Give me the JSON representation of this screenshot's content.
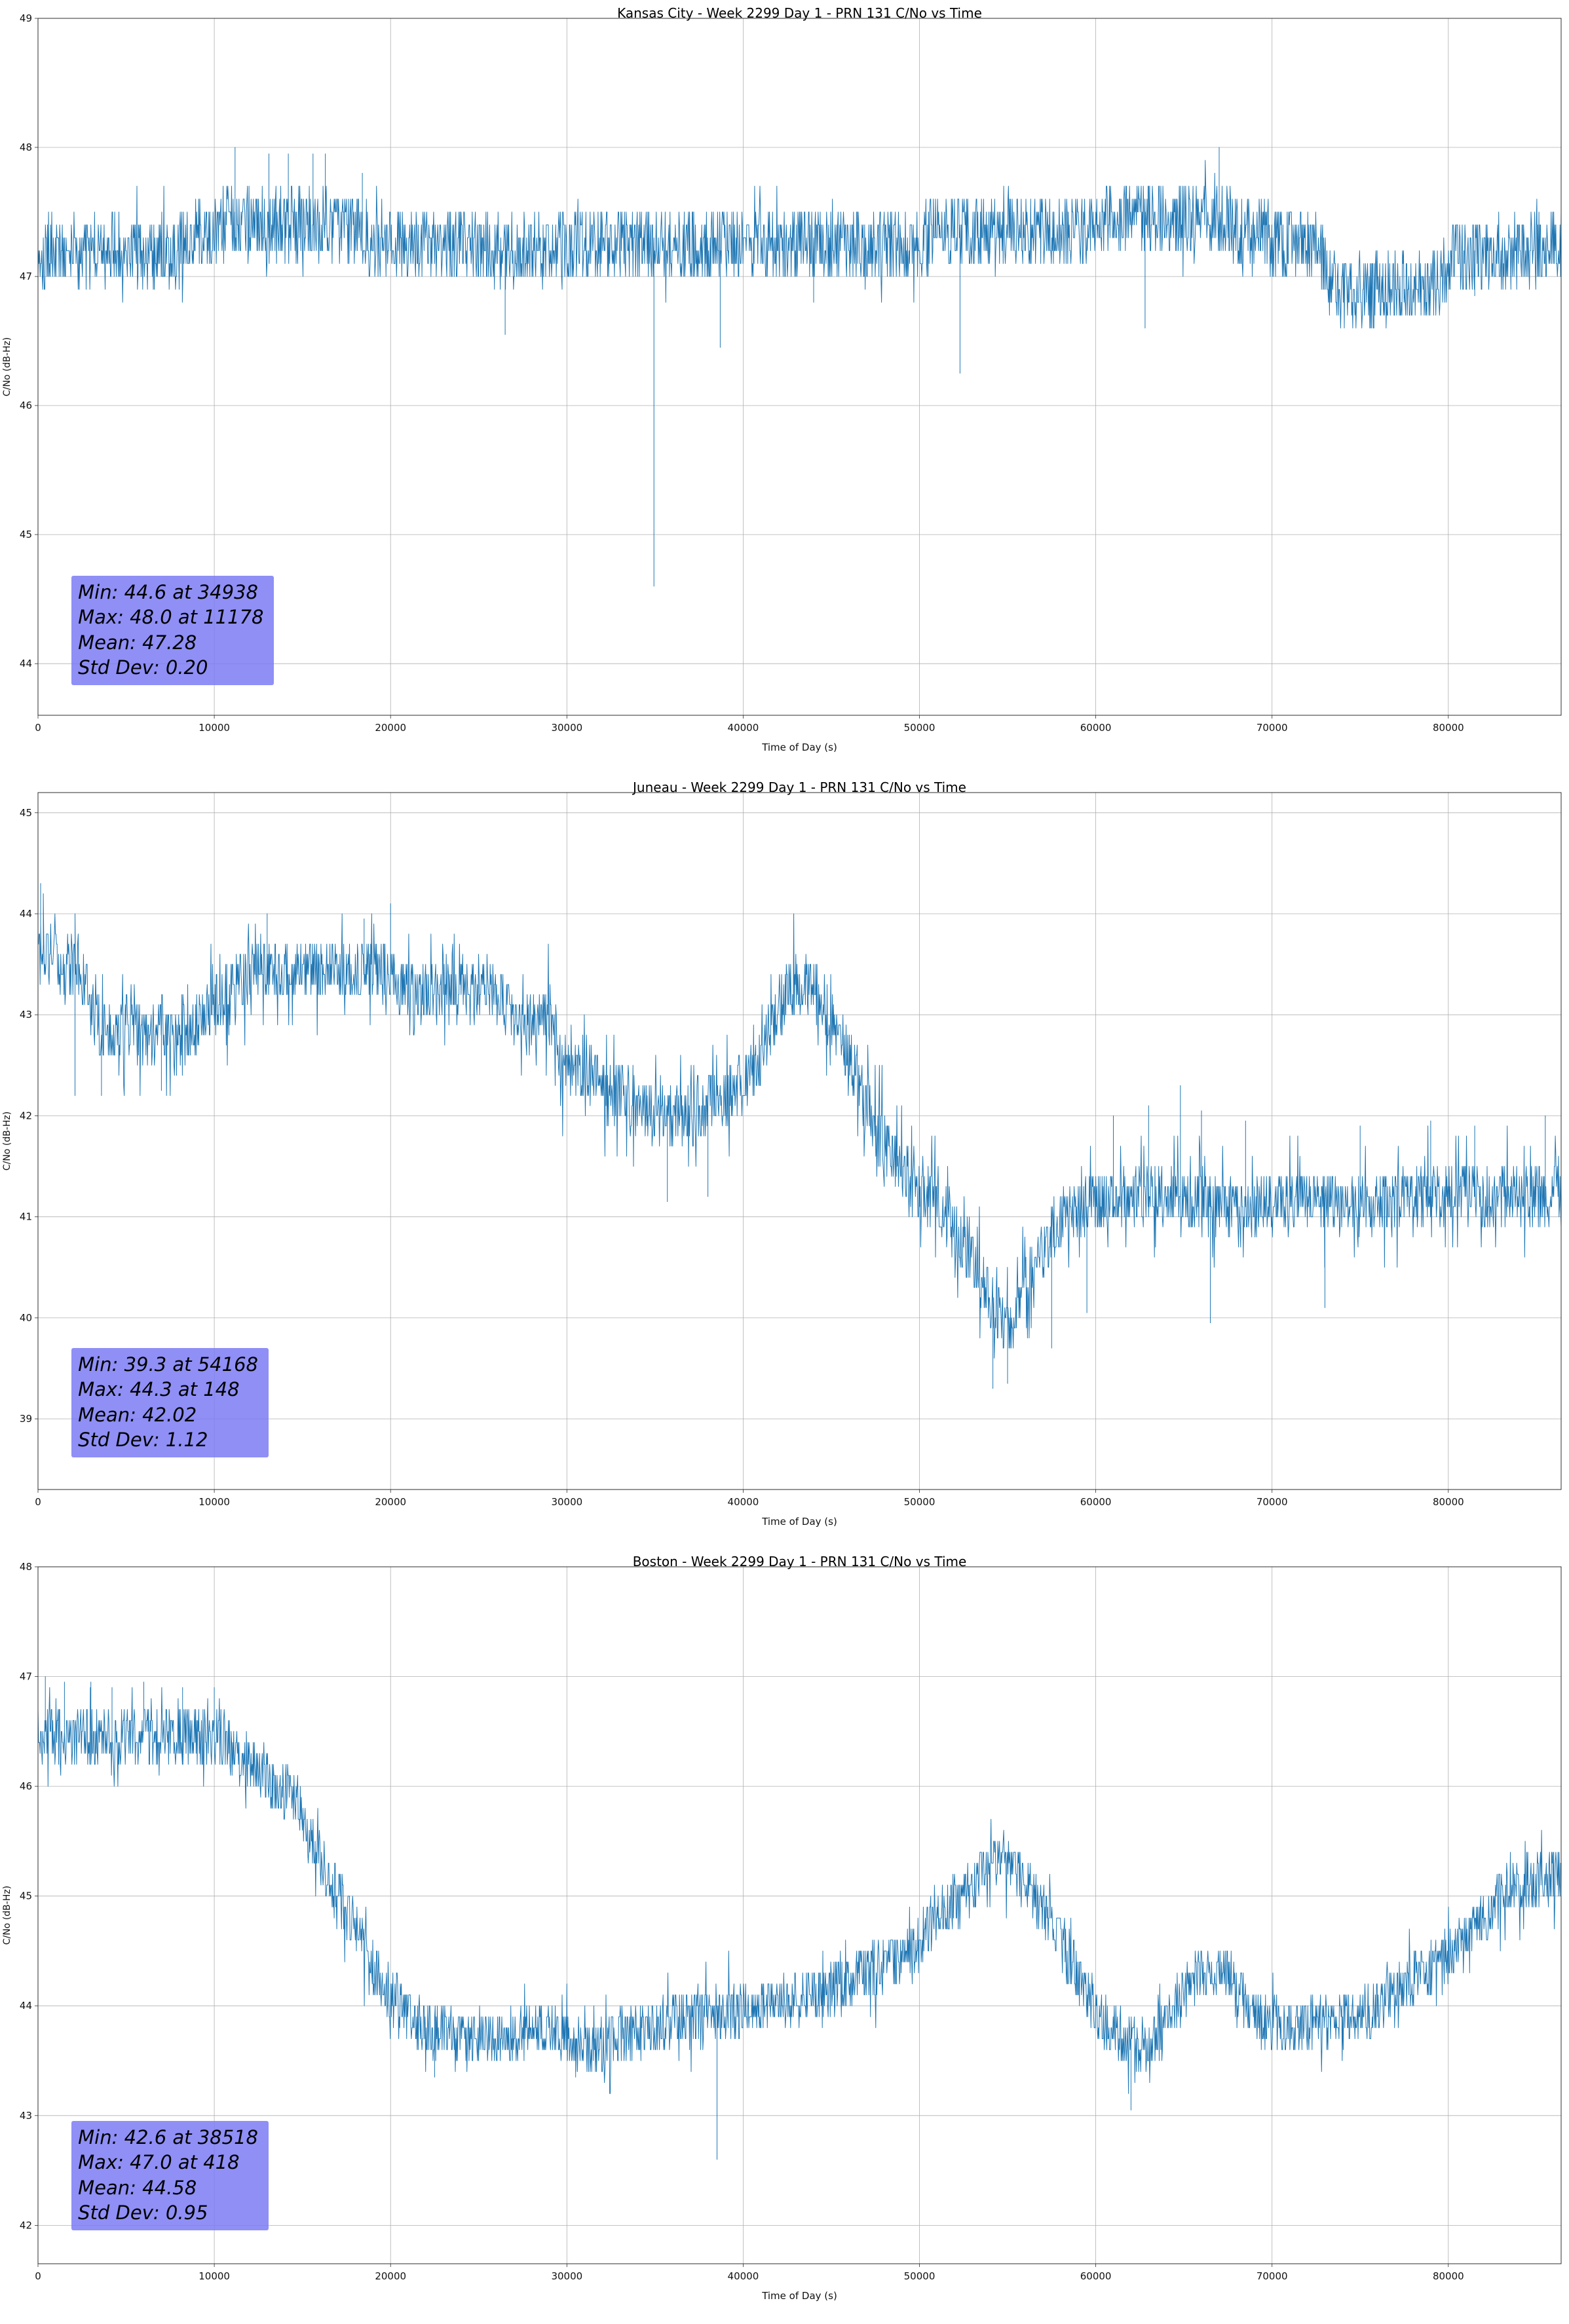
{
  "page": {
    "background": "#ffffff"
  },
  "chart_data": [
    {
      "type": "line",
      "title": "Kansas City - Week 2299 Day 1 - PRN 131 C/No vs Time",
      "xlabel": "Time of Day (s)",
      "ylabel": "C/No (dB-Hz)",
      "xlim": [
        0,
        86400
      ],
      "ylim": [
        43.6,
        49.0
      ],
      "xticks": [
        0,
        10000,
        20000,
        30000,
        40000,
        50000,
        60000,
        70000,
        80000
      ],
      "yticks": [
        44,
        45,
        46,
        47,
        48,
        49
      ],
      "grid": true,
      "legend": "none",
      "line_color": "#1f77b4",
      "grid_color": "#b0b0b0",
      "series_keypoints": {
        "x": [
          0,
          8000,
          9000,
          11000,
          17500,
          18500,
          26000,
          34000,
          36000,
          50000,
          51000,
          59500,
          60500,
          67500,
          68500,
          72500,
          73500,
          79000,
          80500,
          86400
        ],
        "y": [
          47.2,
          47.2,
          47.3,
          47.4,
          47.4,
          47.3,
          47.2,
          47.25,
          47.25,
          47.25,
          47.35,
          47.35,
          47.45,
          47.45,
          47.3,
          47.25,
          46.9,
          46.9,
          47.15,
          47.25
        ]
      },
      "noise": {
        "amp": 0.28,
        "burst_prob": 0.03,
        "burst_amp": 0.3,
        "quantize": 0.1,
        "seed": 101,
        "sample_step": 30
      },
      "spikes": [
        {
          "x": 11178,
          "y": 48.0
        },
        {
          "x": 13100,
          "y": 47.95
        },
        {
          "x": 14200,
          "y": 47.95
        },
        {
          "x": 15600,
          "y": 47.95
        },
        {
          "x": 16300,
          "y": 47.95
        },
        {
          "x": 18400,
          "y": 47.8
        },
        {
          "x": 26500,
          "y": 46.55
        },
        {
          "x": 34938,
          "y": 44.6
        },
        {
          "x": 38700,
          "y": 46.45
        },
        {
          "x": 44000,
          "y": 46.8
        },
        {
          "x": 52300,
          "y": 46.25
        },
        {
          "x": 62800,
          "y": 46.6
        },
        {
          "x": 67000,
          "y": 48.0
        },
        {
          "x": 81500,
          "y": 46.85
        }
      ],
      "stats": {
        "min": 44.6,
        "min_time": 34938,
        "max": 48.0,
        "max_time": 11178,
        "mean": 47.28,
        "std_dev": 0.2
      },
      "stats_lines": [
        "Min: 44.6 at 34938",
        "Max: 48.0 at 11178",
        "Mean: 47.28",
        "Std Dev: 0.20"
      ],
      "stats_box": {
        "x": 1900,
        "y": 44.68,
        "bg": "rgba(123,123,245,0.85)"
      }
    },
    {
      "type": "line",
      "title": "Juneau - Week 2299 Day 1 - PRN 131 C/No vs Time",
      "xlabel": "Time of Day (s)",
      "ylabel": "C/No (dB-Hz)",
      "xlim": [
        0,
        86400
      ],
      "ylim": [
        38.3,
        45.2
      ],
      "xticks": [
        0,
        10000,
        20000,
        30000,
        40000,
        50000,
        60000,
        70000,
        80000
      ],
      "yticks": [
        39,
        40,
        41,
        42,
        43,
        44,
        45
      ],
      "grid": true,
      "legend": "none",
      "line_color": "#1f77b4",
      "grid_color": "#b0b0b0",
      "series_keypoints": {
        "x": [
          0,
          400,
          2500,
          3500,
          8500,
          9500,
          11500,
          12500,
          19500,
          21000,
          23500,
          26000,
          27500,
          29000,
          29700,
          31000,
          33000,
          35500,
          37500,
          39500,
          41000,
          42500,
          44000,
          45000,
          46500,
          48000,
          49500,
          51000,
          53000,
          54200,
          55200,
          56000,
          57500,
          58500,
          60000,
          64000,
          68000,
          72000,
          76000,
          80000,
          83000,
          86400
        ],
        "y": [
          43.9,
          43.6,
          43.4,
          42.85,
          42.8,
          43.0,
          43.3,
          43.45,
          43.45,
          43.25,
          43.3,
          43.25,
          42.95,
          43.05,
          42.5,
          42.4,
          42.25,
          41.95,
          42.1,
          42.25,
          42.6,
          43.25,
          43.3,
          42.95,
          42.35,
          41.7,
          41.35,
          41.1,
          40.55,
          40.1,
          39.85,
          40.3,
          40.85,
          41.05,
          41.15,
          41.25,
          41.1,
          41.15,
          41.1,
          41.25,
          41.2,
          41.2
        ]
      },
      "noise": {
        "amp": 0.3,
        "burst_prob": 0.15,
        "burst_amp": 0.45,
        "quantize": 0.1,
        "seed": 202,
        "sample_step": 30
      },
      "spikes": [
        {
          "x": 148,
          "y": 44.3
        },
        {
          "x": 300,
          "y": 44.2
        },
        {
          "x": 2100,
          "y": 42.2
        },
        {
          "x": 3600,
          "y": 42.2
        },
        {
          "x": 7000,
          "y": 42.25
        },
        {
          "x": 13000,
          "y": 44.0
        },
        {
          "x": 18500,
          "y": 43.95
        },
        {
          "x": 20000,
          "y": 44.1
        },
        {
          "x": 35700,
          "y": 41.15
        },
        {
          "x": 38000,
          "y": 41.2
        },
        {
          "x": 54168,
          "y": 39.3
        },
        {
          "x": 55000,
          "y": 39.35
        },
        {
          "x": 57500,
          "y": 39.7
        },
        {
          "x": 59500,
          "y": 40.05
        },
        {
          "x": 61000,
          "y": 42.0
        },
        {
          "x": 63000,
          "y": 42.1
        },
        {
          "x": 64800,
          "y": 42.3
        },
        {
          "x": 66000,
          "y": 42.05
        },
        {
          "x": 66500,
          "y": 39.95
        },
        {
          "x": 68500,
          "y": 41.95
        },
        {
          "x": 73000,
          "y": 40.1
        },
        {
          "x": 75000,
          "y": 41.9
        },
        {
          "x": 79000,
          "y": 41.95
        },
        {
          "x": 81500,
          "y": 41.9
        },
        {
          "x": 85500,
          "y": 42.0
        }
      ],
      "stats": {
        "min": 39.3,
        "min_time": 54168,
        "max": 44.3,
        "max_time": 148,
        "mean": 42.02,
        "std_dev": 1.12
      },
      "stats_lines": [
        "Min: 39.3 at 54168",
        "Max: 44.3 at 148",
        "Mean: 42.02",
        "Std Dev: 1.12"
      ],
      "stats_box": {
        "x": 1900,
        "y": 39.7,
        "bg": "rgba(123,123,245,0.85)"
      }
    },
    {
      "type": "line",
      "title": "Boston - Week 2299 Day 1 - PRN 131 C/No vs Time",
      "xlabel": "Time of Day (s)",
      "ylabel": "C/No (dB-Hz)",
      "xlim": [
        0,
        86400
      ],
      "ylim": [
        41.65,
        48.0
      ],
      "xticks": [
        0,
        10000,
        20000,
        30000,
        40000,
        50000,
        60000,
        70000,
        80000
      ],
      "yticks": [
        42,
        43,
        44,
        45,
        46,
        47,
        48
      ],
      "grid": true,
      "legend": "none",
      "line_color": "#1f77b4",
      "grid_color": "#b0b0b0",
      "series_keypoints": {
        "x": [
          0,
          10500,
          12000,
          13500,
          14800,
          15200,
          16500,
          18000,
          19000,
          20500,
          21500,
          26000,
          29000,
          31500,
          33500,
          36000,
          40000,
          43000,
          45500,
          47500,
          49500,
          51500,
          53000,
          54500,
          55500,
          57000,
          58500,
          60000,
          61500,
          63000,
          64500,
          66000,
          67500,
          69500,
          72000,
          75500,
          77500,
          79500,
          81500,
          83500,
          86400
        ],
        "y": [
          46.45,
          46.45,
          46.2,
          46.0,
          45.85,
          45.6,
          45.15,
          44.7,
          44.35,
          44.05,
          43.8,
          43.7,
          43.8,
          43.6,
          43.75,
          43.85,
          43.95,
          44.05,
          44.15,
          44.35,
          44.5,
          44.9,
          45.1,
          45.35,
          45.25,
          44.9,
          44.45,
          43.95,
          43.7,
          43.6,
          44.0,
          44.35,
          44.25,
          43.85,
          43.8,
          43.95,
          44.2,
          44.35,
          44.7,
          45.1,
          45.2
        ]
      },
      "noise": {
        "amp": 0.25,
        "burst_prob": 0.1,
        "burst_amp": 0.3,
        "quantize": 0.1,
        "seed": 303,
        "sample_step": 30
      },
      "spikes": [
        {
          "x": 418,
          "y": 47.0
        },
        {
          "x": 1500,
          "y": 46.95
        },
        {
          "x": 3000,
          "y": 46.95
        },
        {
          "x": 4200,
          "y": 46.9
        },
        {
          "x": 6000,
          "y": 46.95
        },
        {
          "x": 8200,
          "y": 46.9
        },
        {
          "x": 10000,
          "y": 46.9
        },
        {
          "x": 22500,
          "y": 43.35
        },
        {
          "x": 30500,
          "y": 43.35
        },
        {
          "x": 38518,
          "y": 42.6
        },
        {
          "x": 62000,
          "y": 43.05
        }
      ],
      "stats": {
        "min": 42.6,
        "min_time": 38518,
        "max": 47.0,
        "max_time": 418,
        "mean": 44.58,
        "std_dev": 0.95
      },
      "stats_lines": [
        "Min: 42.6 at 38518",
        "Max: 47.0 at 418",
        "Mean: 44.58",
        "Std Dev: 0.95"
      ],
      "stats_box": {
        "x": 1900,
        "y": 42.95,
        "bg": "rgba(123,123,245,0.85)"
      }
    }
  ]
}
